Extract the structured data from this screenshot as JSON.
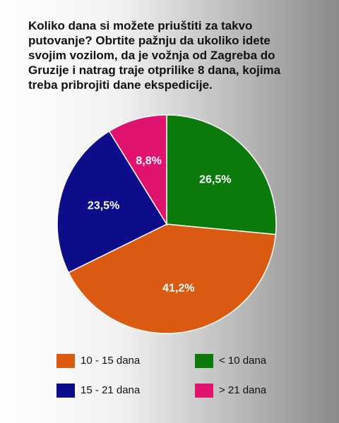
{
  "chart_data": {
    "type": "pie",
    "title": "Koliko dana si možete priuštiti za takvo putovanje? Obrtite pažnju da ukoliko idete svojim vozilom, da je vožnja od Zagreba do Gruzije i natrag traje otprilike 8 dana, kojima treba pribrojiti dane ekspedicije.",
    "categories": [
      "< 10 dana",
      "10 - 15 dana",
      "15 - 21 dana",
      "> 21 dana"
    ],
    "values": [
      26.5,
      41.2,
      23.5,
      8.8
    ],
    "value_labels": [
      "26,5%",
      "41,2%",
      "23,5%",
      "8,8%"
    ],
    "colors": [
      "#0b7a0b",
      "#d95a10",
      "#0d0d8a",
      "#e0136f"
    ]
  }
}
